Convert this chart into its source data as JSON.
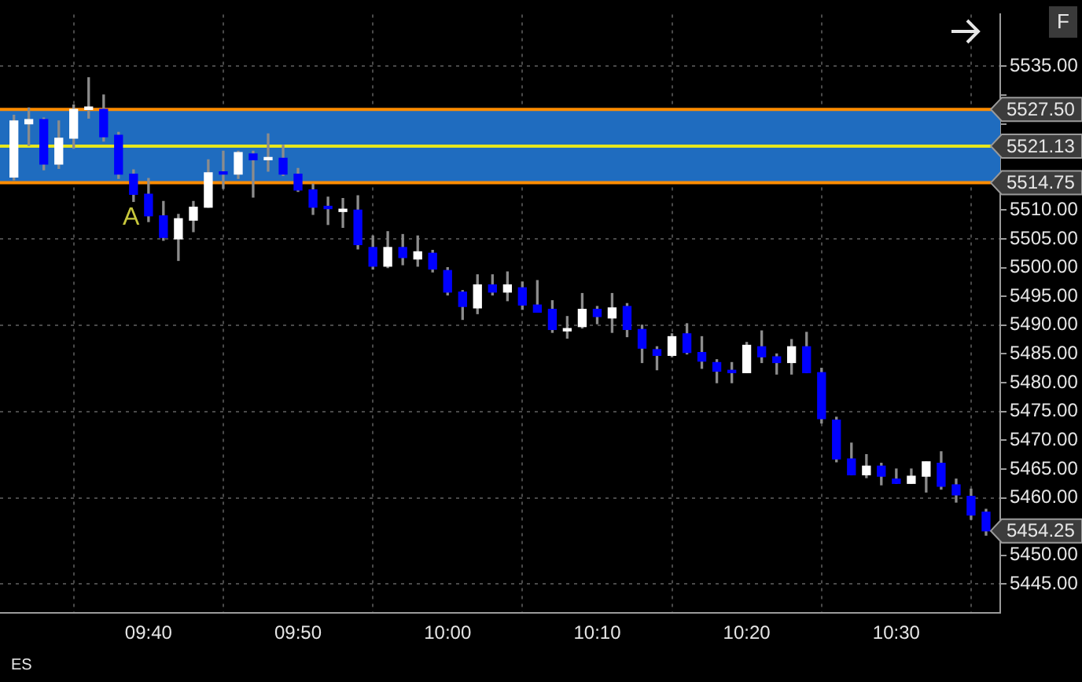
{
  "chart_data": {
    "type": "candlestick",
    "x": [
      9.5167,
      9.5333,
      9.55,
      9.5667,
      9.5833,
      9.6,
      9.6167,
      9.6333,
      9.65,
      9.6667,
      9.6833,
      9.7,
      9.7167,
      9.7333,
      9.75,
      9.7667,
      9.7833,
      9.8,
      9.8167,
      9.8333,
      9.85,
      9.8667,
      9.8833,
      9.9,
      9.9167,
      9.9333,
      9.95,
      9.9667,
      9.9833,
      10,
      10.0167,
      10.0333,
      10.05,
      10.0667,
      10.0833,
      10.1,
      10.1167,
      10.1333,
      10.15,
      10.1667,
      10.1833,
      10.2,
      10.2167,
      10.2333,
      10.25,
      10.2667,
      10.2833,
      10.3,
      10.3167,
      10.3333,
      10.35,
      10.3667,
      10.3833,
      10.4,
      10.4167,
      10.4333,
      10.45,
      10.4667,
      10.4833,
      10.5,
      10.5167,
      10.5333,
      10.55,
      10.5667,
      10.5833,
      10.6
    ],
    "ohlc": [
      [
        5515.75,
        5526.5,
        5515.25,
        5525.5
      ],
      [
        5525,
        5527.75,
        5521.25,
        5525.75
      ],
      [
        5525.75,
        5526,
        5517,
        5518
      ],
      [
        5518,
        5525.5,
        5517.25,
        5522.5
      ],
      [
        5522.5,
        5528.25,
        5520.75,
        5527.5
      ],
      [
        5527.5,
        5533,
        5526,
        5527.75
      ],
      [
        5527.5,
        5530,
        5522,
        5522.75
      ],
      [
        5523,
        5523.5,
        5515.5,
        5516.25
      ],
      [
        5516.25,
        5517,
        5511.5,
        5512.75
      ],
      [
        5512.75,
        5515.5,
        5508,
        5509
      ],
      [
        5509,
        5511.5,
        5504.75,
        5505.25
      ],
      [
        5505,
        5509.25,
        5501.25,
        5508.5
      ],
      [
        5508.25,
        5511.5,
        5506.25,
        5510.5
      ],
      [
        5510.5,
        5518.75,
        5510.5,
        5516.5
      ],
      [
        5516.5,
        5520.25,
        5513.75,
        5516.25
      ],
      [
        5516.25,
        5520.25,
        5515.5,
        5520
      ],
      [
        5519.75,
        5520.25,
        5512.25,
        5518.75
      ],
      [
        5518.75,
        5523.25,
        5516.75,
        5519
      ],
      [
        5519,
        5521.25,
        5516,
        5516.25
      ],
      [
        5516.25,
        5517.25,
        5513.25,
        5513.5
      ],
      [
        5513.5,
        5514.5,
        5509.25,
        5510.5
      ],
      [
        5510.5,
        5512.25,
        5507.5,
        5510.25
      ],
      [
        5509.75,
        5512,
        5507,
        5510
      ],
      [
        5510,
        5512.5,
        5503.25,
        5504
      ],
      [
        5503.5,
        5505.5,
        5499.75,
        5500.25
      ],
      [
        5500.25,
        5506.25,
        5500,
        5503.5
      ],
      [
        5503.5,
        5505.75,
        5500.5,
        5501.75
      ],
      [
        5501.5,
        5505.5,
        5500.25,
        5502.75
      ],
      [
        5502.5,
        5503,
        5499.25,
        5499.75
      ],
      [
        5499.5,
        5500,
        5495.25,
        5495.75
      ],
      [
        5495.75,
        5496,
        5491,
        5493.25
      ],
      [
        5493,
        5498.75,
        5492,
        5497
      ],
      [
        5497,
        5498.75,
        5495.25,
        5495.75
      ],
      [
        5495.75,
        5499.25,
        5494.25,
        5497
      ],
      [
        5496.5,
        5497.5,
        5492.75,
        5493.5
      ],
      [
        5493.5,
        5497.75,
        5492.25,
        5492.25
      ],
      [
        5492.75,
        5494.25,
        5488.75,
        5489.25
      ],
      [
        5489,
        5491.5,
        5487.75,
        5489.25
      ],
      [
        5489.75,
        5495.5,
        5489.5,
        5492.75
      ],
      [
        5492.75,
        5493.25,
        5490.25,
        5491.5
      ],
      [
        5491.25,
        5495.5,
        5488.75,
        5493
      ],
      [
        5493.25,
        5493.75,
        5488,
        5489.25
      ],
      [
        5489.25,
        5490,
        5483.5,
        5486
      ],
      [
        5485.75,
        5486.25,
        5482.25,
        5484.75
      ],
      [
        5484.75,
        5488.5,
        5484.5,
        5488
      ],
      [
        5488.5,
        5490.25,
        5485,
        5485.25
      ],
      [
        5485.25,
        5488,
        5482.5,
        5483.75
      ],
      [
        5483.5,
        5484,
        5480,
        5482
      ],
      [
        5482,
        5483.5,
        5480,
        5481.75
      ],
      [
        5481.75,
        5487,
        5481.75,
        5486.5
      ],
      [
        5486.25,
        5489,
        5483.5,
        5484.5
      ],
      [
        5484.5,
        5485,
        5481.5,
        5483.5
      ],
      [
        5483.5,
        5487.5,
        5481.5,
        5486.25
      ],
      [
        5486.25,
        5488.75,
        5481.75,
        5481.75
      ],
      [
        5481.75,
        5482.5,
        5473,
        5473.75
      ],
      [
        5473.5,
        5474,
        5466.25,
        5466.75
      ],
      [
        5466.75,
        5469.5,
        5464,
        5464
      ],
      [
        5464,
        5467.5,
        5463.5,
        5465.5
      ],
      [
        5465.5,
        5466,
        5462.25,
        5463.75
      ],
      [
        5463.25,
        5465,
        5462.5,
        5462.5
      ],
      [
        5462.5,
        5465,
        5462.5,
        5463.75
      ],
      [
        5463.75,
        5466.25,
        5461,
        5466.25
      ],
      [
        5466,
        5468,
        5461.5,
        5462
      ],
      [
        5462.25,
        5463.25,
        5459.25,
        5460.5
      ],
      [
        5460.25,
        5461.5,
        5456.25,
        5457
      ],
      [
        5457.5,
        5458,
        5453.5,
        5454.25
      ]
    ],
    "colors": [
      "#ffffff",
      "#ffffff",
      "#0000ff",
      "#ffffff",
      "#ffffff",
      "#ffffff",
      "#0000ff",
      "#0000ff",
      "#0000ff",
      "#0000ff",
      "#0000ff",
      "#ffffff",
      "#ffffff",
      "#ffffff",
      "#0000ff",
      "#ffffff",
      "#0000ff",
      "#ffffff",
      "#0000ff",
      "#0000ff",
      "#0000ff",
      "#0000ff",
      "#ffffff",
      "#0000ff",
      "#0000ff",
      "#ffffff",
      "#0000ff",
      "#ffffff",
      "#0000ff",
      "#0000ff",
      "#0000ff",
      "#ffffff",
      "#0000ff",
      "#ffffff",
      "#0000ff",
      "#0000ff",
      "#0000ff",
      "#ffffff",
      "#ffffff",
      "#0000ff",
      "#ffffff",
      "#0000ff",
      "#0000ff",
      "#0000ff",
      "#ffffff",
      "#0000ff",
      "#0000ff",
      "#0000ff",
      "#0000ff",
      "#ffffff",
      "#0000ff",
      "#0000ff",
      "#ffffff",
      "#0000ff",
      "#0000ff",
      "#0000ff",
      "#0000ff",
      "#ffffff",
      "#0000ff",
      "#0000ff",
      "#ffffff",
      "#ffffff",
      "#0000ff",
      "#0000ff",
      "#0000ff",
      "#0000ff"
    ],
    "xlim": [
      9.5012,
      10.6158
    ],
    "xticks": [
      {
        "value": 9.6667,
        "label": "09:40"
      },
      {
        "value": 9.8333,
        "label": "09:50"
      },
      {
        "value": 10,
        "label": "10:00"
      },
      {
        "value": 10.1667,
        "label": "10:10"
      },
      {
        "value": 10.3333,
        "label": "10:20"
      },
      {
        "value": 10.5,
        "label": "10:30"
      }
    ],
    "ylim": [
      5440,
      5544
    ],
    "yticks": [
      {
        "value": 5445,
        "label": "5445.00"
      },
      {
        "value": 5450,
        "label": "5450.00"
      },
      {
        "value": 5455,
        "label": null
      },
      {
        "value": 5460,
        "label": "5460.00"
      },
      {
        "value": 5465,
        "label": "5465.00"
      },
      {
        "value": 5470,
        "label": "5470.00"
      },
      {
        "value": 5475,
        "label": "5475.00"
      },
      {
        "value": 5480,
        "label": "5480.00"
      },
      {
        "value": 5485,
        "label": "5485.00"
      },
      {
        "value": 5490,
        "label": "5490.00"
      },
      {
        "value": 5495,
        "label": "5495.00"
      },
      {
        "value": 5500,
        "label": "5500.00"
      },
      {
        "value": 5505,
        "label": "5505.00"
      },
      {
        "value": 5510,
        "label": "5510.00"
      },
      {
        "value": 5515,
        "label": null
      },
      {
        "value": 5520,
        "label": null
      },
      {
        "value": 5525,
        "label": null
      },
      {
        "value": 5530,
        "label": null
      },
      {
        "value": 5535,
        "label": "5535.00"
      }
    ],
    "bands": [
      {
        "axis": "y",
        "from": 5514.75,
        "to": 5527.5,
        "color": "#1f6cbf"
      }
    ],
    "ref_lines": [
      {
        "axis": "y",
        "value": 5527.5,
        "label": "5527.50",
        "color": "#ff8c00"
      },
      {
        "axis": "y",
        "value": 5521.13,
        "label": "5521.13",
        "color": "#e6e61e"
      },
      {
        "axis": "y",
        "value": 5514.75,
        "label": "5514.75",
        "color": "#ff8c00"
      }
    ],
    "annotations": [
      "A",
      "5454.25",
      "ES",
      "F"
    ],
    "grid": true,
    "legend": false
  }
}
